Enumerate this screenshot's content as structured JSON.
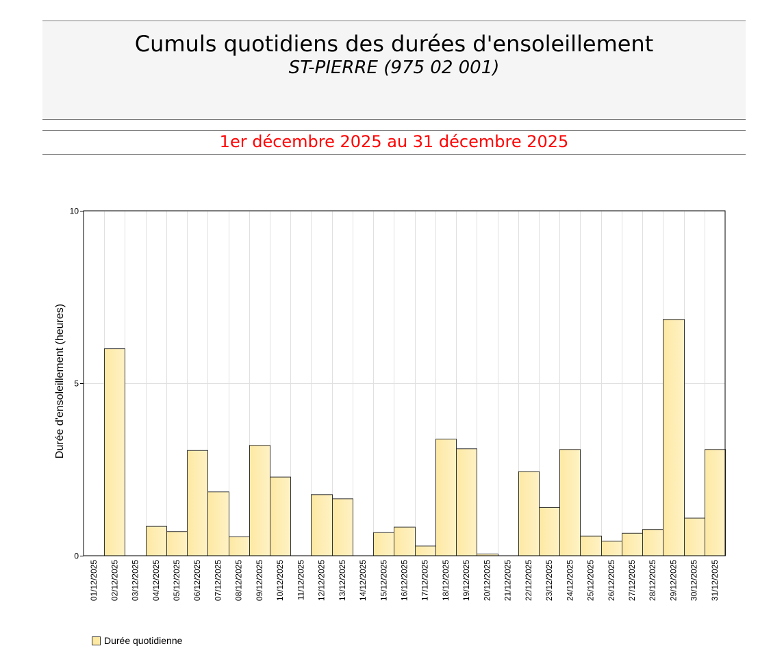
{
  "header": {
    "title": "Cumuls quotidiens des durées d'ensoleillement",
    "subtitle": "ST-PIERRE (975 02 001)",
    "period": "1er décembre 2025 au 31 décembre 2025"
  },
  "legend": {
    "label": "Durée quotidienne"
  },
  "colors": {
    "bar_fill_left": "#fde9a4",
    "bar_fill_right": "#fff2c4",
    "bar_stroke": "#333333",
    "period_text": "#ff0000",
    "header_bg": "#f5f5f5",
    "grid": "#e0e0e0"
  },
  "chart_data": {
    "type": "bar",
    "title": "Cumuls quotidiens des durées d'ensoleillement",
    "subtitle": "ST-PIERRE (975 02 001)",
    "xlabel": "",
    "ylabel": "Durée d'ensoleillement (heures)",
    "ylim": [
      0,
      10
    ],
    "yticks": [
      0,
      5,
      10
    ],
    "grid": true,
    "legend_position": "bottom-left",
    "categories": [
      "01/12/2025",
      "02/12/2025",
      "03/12/2025",
      "04/12/2025",
      "05/12/2025",
      "06/12/2025",
      "07/12/2025",
      "08/12/2025",
      "09/12/2025",
      "10/12/2025",
      "11/12/2025",
      "12/12/2025",
      "13/12/2025",
      "14/12/2025",
      "15/12/2025",
      "16/12/2025",
      "17/12/2025",
      "18/12/2025",
      "19/12/2025",
      "20/12/2025",
      "21/12/2025",
      "22/12/2025",
      "23/12/2025",
      "24/12/2025",
      "25/12/2025",
      "26/12/2025",
      "27/12/2025",
      "28/12/2025",
      "29/12/2025",
      "30/12/2025",
      "31/12/2025"
    ],
    "series": [
      {
        "name": "Durée quotidienne",
        "values": [
          0,
          6.0,
          0,
          0.85,
          0.7,
          3.05,
          1.85,
          0.55,
          3.2,
          2.28,
          0,
          1.77,
          1.65,
          0,
          0.67,
          0.83,
          0.28,
          3.38,
          3.1,
          0.05,
          0,
          2.44,
          1.4,
          3.08,
          0.57,
          0.42,
          0.65,
          0.76,
          6.85,
          1.09,
          3.08
        ]
      }
    ]
  }
}
